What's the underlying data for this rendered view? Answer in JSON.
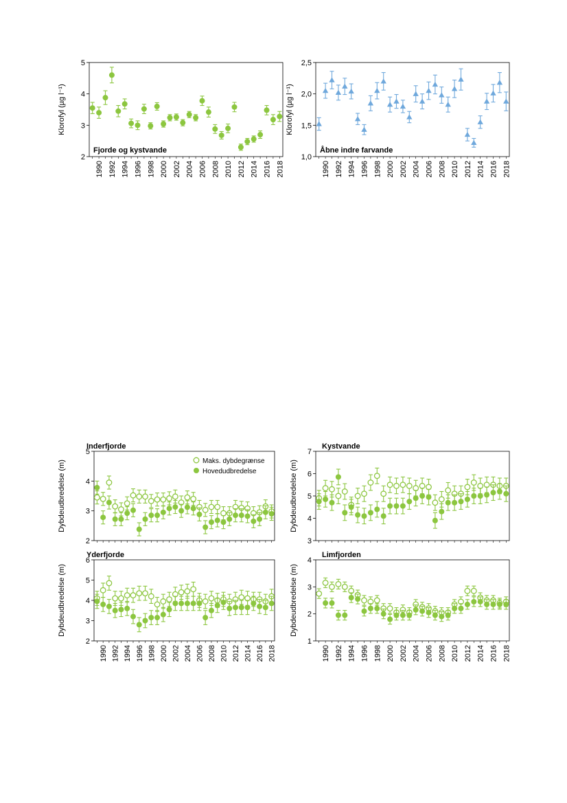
{
  "colors": {
    "green": "#8cc63f",
    "blue": "#6fa8dc"
  },
  "chart_data": [
    {
      "type": "scatter",
      "title": "Fjorde og kystvande",
      "ylabel": "Klorofyl (µg l⁻¹)",
      "ylim": [
        2,
        5
      ],
      "yticks": [
        2,
        3,
        4,
        5
      ],
      "ytick_labels": [
        "2",
        "3",
        "4",
        "5"
      ],
      "xlim": [
        1988.5,
        2018.5
      ],
      "xticks": [
        1990,
        1992,
        1994,
        1996,
        1998,
        2000,
        2002,
        2004,
        2006,
        2008,
        2010,
        2012,
        2014,
        2016,
        2018
      ],
      "grid": false,
      "series": [
        {
          "marker": "filled-circle",
          "color": "#8cc63f",
          "x": [
            1989,
            1990,
            1991,
            1992,
            1993,
            1994,
            1995,
            1996,
            1997,
            1998,
            1999,
            2000,
            2001,
            2002,
            2003,
            2004,
            2005,
            2006,
            2007,
            2008,
            2009,
            2010,
            2011,
            2012,
            2013,
            2014,
            2015,
            2016,
            2017,
            2018
          ],
          "y": [
            3.55,
            3.4,
            3.88,
            4.6,
            3.45,
            3.68,
            3.06,
            3.0,
            3.52,
            2.98,
            3.6,
            3.04,
            3.24,
            3.26,
            3.08,
            3.34,
            3.24,
            3.78,
            3.42,
            2.88,
            2.68,
            2.9,
            3.58,
            2.3,
            2.48,
            2.56,
            2.7,
            3.48,
            3.18,
            3.28
          ],
          "err": [
            0.18,
            0.18,
            0.22,
            0.25,
            0.18,
            0.16,
            0.14,
            0.14,
            0.15,
            0.1,
            0.12,
            0.1,
            0.1,
            0.1,
            0.1,
            0.1,
            0.1,
            0.15,
            0.16,
            0.14,
            0.12,
            0.14,
            0.15,
            0.1,
            0.1,
            0.1,
            0.12,
            0.15,
            0.16,
            0.16
          ]
        }
      ]
    },
    {
      "type": "scatter",
      "title": "Åbne indre farvande",
      "ylabel": "Klorofyl (µg l⁻¹)",
      "ylim": [
        1.0,
        2.5
      ],
      "yticks": [
        1.0,
        1.5,
        2.0,
        2.5
      ],
      "ytick_labels": [
        "1,0",
        "1,5",
        "2,0",
        "2,5"
      ],
      "xlim": [
        1988.5,
        2018.5
      ],
      "xticks": [
        1990,
        1992,
        1994,
        1996,
        1998,
        2000,
        2002,
        2004,
        2006,
        2008,
        2010,
        2012,
        2014,
        2016,
        2018
      ],
      "grid": false,
      "series": [
        {
          "marker": "filled-triangle",
          "color": "#6fa8dc",
          "x": [
            1989,
            1990,
            1991,
            1992,
            1993,
            1994,
            1995,
            1996,
            1997,
            1998,
            1999,
            2000,
            2001,
            2002,
            2003,
            2004,
            2005,
            2006,
            2007,
            2008,
            2009,
            2010,
            2011,
            2012,
            2013,
            2014,
            2015,
            2016,
            2017,
            2018
          ],
          "y": [
            1.52,
            2.05,
            2.22,
            2.02,
            2.12,
            2.04,
            1.6,
            1.43,
            1.85,
            2.05,
            2.2,
            1.83,
            1.88,
            1.8,
            1.63,
            2.0,
            1.88,
            2.05,
            2.15,
            1.98,
            1.83,
            2.08,
            2.23,
            1.35,
            1.22,
            1.55,
            1.88,
            2.01,
            2.18,
            1.88
          ]
        }
      ],
      "err": [
        0.1,
        0.12,
        0.14,
        0.12,
        0.13,
        0.12,
        0.09,
        0.08,
        0.12,
        0.13,
        0.14,
        0.12,
        0.11,
        0.1,
        0.09,
        0.13,
        0.12,
        0.14,
        0.15,
        0.13,
        0.12,
        0.14,
        0.17,
        0.1,
        0.07,
        0.1,
        0.13,
        0.14,
        0.16,
        0.15
      ]
    },
    {
      "type": "scatter",
      "title": "Inderfjorde",
      "ylabel": "Dybdeudbredelse (m)",
      "ylim": [
        2,
        5
      ],
      "yticks": [
        2,
        3,
        4,
        5
      ],
      "ytick_labels": [
        "2",
        "3",
        "4",
        "5"
      ],
      "xlim": [
        1988.5,
        2018.5
      ],
      "xticks": [],
      "grid": false,
      "legend": "top-right",
      "series": [
        {
          "name": "Maks. dybdegrænse",
          "marker": "open-circle",
          "color": "#8cc63f",
          "x": [
            1989,
            1990,
            1991,
            1992,
            1993,
            1994,
            1995,
            1996,
            1997,
            1998,
            1999,
            2000,
            2001,
            2002,
            2003,
            2004,
            2005,
            2006,
            2007,
            2008,
            2009,
            2010,
            2011,
            2012,
            2013,
            2014,
            2015,
            2016,
            2017,
            2018
          ],
          "y": [
            3.45,
            3.4,
            3.95,
            3.15,
            3.05,
            3.25,
            3.52,
            3.48,
            3.48,
            3.33,
            3.38,
            3.38,
            3.42,
            3.48,
            3.28,
            3.45,
            3.4,
            3.13,
            3.03,
            3.13,
            3.13,
            2.92,
            2.92,
            3.13,
            3.1,
            3.08,
            2.92,
            2.95,
            3.15,
            2.98
          ]
        },
        {
          "name": "Hovedudbredelse",
          "marker": "filled-circle",
          "color": "#8cc63f",
          "x": [
            1989,
            1990,
            1991,
            1992,
            1993,
            1994,
            1995,
            1996,
            1997,
            1998,
            1999,
            2000,
            2001,
            2002,
            2003,
            2004,
            2005,
            2006,
            2007,
            2008,
            2009,
            2010,
            2011,
            2012,
            2013,
            2014,
            2015,
            2016,
            2017,
            2018
          ],
          "y": [
            3.78,
            2.78,
            3.28,
            2.72,
            2.72,
            2.92,
            3.02,
            2.38,
            2.72,
            2.85,
            2.85,
            2.95,
            3.08,
            3.13,
            3.0,
            3.12,
            3.08,
            2.88,
            2.45,
            2.62,
            2.68,
            2.62,
            2.72,
            2.85,
            2.85,
            2.82,
            2.65,
            2.72,
            2.95,
            2.9
          ]
        }
      ]
    },
    {
      "type": "scatter",
      "title": "Kystvande",
      "ylabel": "Dybdeudbredelse (m)",
      "ylim": [
        3,
        7
      ],
      "yticks": [
        3,
        4,
        5,
        6,
        7
      ],
      "ytick_labels": [
        "3",
        "4",
        "5",
        "6",
        "7"
      ],
      "xlim": [
        1988.5,
        2018.5
      ],
      "xticks": [],
      "grid": false,
      "series": [
        {
          "marker": "open-circle",
          "color": "#8cc63f",
          "x": [
            1989,
            1990,
            1991,
            1992,
            1993,
            1994,
            1995,
            1996,
            1997,
            1998,
            1999,
            2000,
            2001,
            2002,
            2003,
            2004,
            2005,
            2006,
            2007,
            2008,
            2009,
            2010,
            2011,
            2012,
            2013,
            2014,
            2015,
            2016,
            2017,
            2018
          ],
          "y": [
            4.9,
            5.35,
            5.3,
            5.0,
            5.2,
            4.6,
            5.0,
            5.1,
            5.6,
            5.9,
            5.1,
            5.5,
            5.45,
            5.5,
            5.45,
            5.35,
            5.45,
            5.4,
            4.7,
            4.85,
            5.25,
            5.1,
            5.1,
            5.4,
            5.6,
            5.45,
            5.5,
            5.5,
            5.45,
            5.45
          ]
        },
        {
          "marker": "filled-circle",
          "color": "#8cc63f",
          "x": [
            1989,
            1990,
            1991,
            1992,
            1993,
            1994,
            1995,
            1996,
            1997,
            1998,
            1999,
            2000,
            2001,
            2002,
            2003,
            2004,
            2005,
            2006,
            2007,
            2008,
            2009,
            2010,
            2011,
            2012,
            2013,
            2014,
            2015,
            2016,
            2017,
            2018
          ],
          "y": [
            4.75,
            4.85,
            4.7,
            5.85,
            4.25,
            4.5,
            4.15,
            4.1,
            4.25,
            4.4,
            4.1,
            4.55,
            4.55,
            4.55,
            4.75,
            4.9,
            5.0,
            4.95,
            3.9,
            4.3,
            4.7,
            4.7,
            4.75,
            4.85,
            5.0,
            5.0,
            5.05,
            5.15,
            5.2,
            5.1
          ]
        }
      ]
    },
    {
      "type": "scatter",
      "title": "Yderfjorde",
      "ylabel": "Dybdeudbredelse (m)",
      "ylim": [
        2,
        6
      ],
      "yticks": [
        2,
        3,
        4,
        5,
        6
      ],
      "ytick_labels": [
        "2",
        "3",
        "4",
        "5",
        "6"
      ],
      "xlim": [
        1988.5,
        2018.5
      ],
      "xticks": [
        1990,
        1992,
        1994,
        1996,
        1998,
        2000,
        2002,
        2004,
        2006,
        2008,
        2010,
        2012,
        2014,
        2016,
        2018
      ],
      "grid": false,
      "series": [
        {
          "marker": "open-circle",
          "color": "#8cc63f",
          "x": [
            1989,
            1990,
            1991,
            1992,
            1993,
            1994,
            1995,
            1996,
            1997,
            1998,
            1999,
            2000,
            2001,
            2002,
            2003,
            2004,
            2005,
            2006,
            2007,
            2008,
            2009,
            2010,
            2011,
            2012,
            2013,
            2014,
            2015,
            2016,
            2017,
            2018
          ],
          "y": [
            4.1,
            4.5,
            4.85,
            4.1,
            4.1,
            4.25,
            4.25,
            4.35,
            4.35,
            4.2,
            3.8,
            3.95,
            4.05,
            4.3,
            4.4,
            4.45,
            4.55,
            4.0,
            3.95,
            4.1,
            4.0,
            4.05,
            3.95,
            4.05,
            4.15,
            4.1,
            4.05,
            4.05,
            3.95,
            4.2
          ]
        },
        {
          "marker": "filled-circle",
          "color": "#8cc63f",
          "x": [
            1989,
            1990,
            1991,
            1992,
            1993,
            1994,
            1995,
            1996,
            1997,
            1998,
            1999,
            2000,
            2001,
            2002,
            2003,
            2004,
            2005,
            2006,
            2007,
            2008,
            2009,
            2010,
            2011,
            2012,
            2013,
            2014,
            2015,
            2016,
            2017,
            2018
          ],
          "y": [
            3.95,
            3.8,
            3.7,
            3.5,
            3.55,
            3.6,
            3.2,
            2.8,
            3.0,
            3.15,
            3.15,
            3.3,
            3.55,
            3.85,
            3.85,
            3.85,
            3.85,
            3.85,
            3.15,
            3.5,
            3.75,
            3.9,
            3.6,
            3.65,
            3.65,
            3.65,
            3.85,
            3.7,
            3.65,
            3.85
          ]
        }
      ]
    },
    {
      "type": "scatter",
      "title": "Limfjorden",
      "ylabel": "Dybdeudbredelse (m)",
      "ylim": [
        1,
        4
      ],
      "yticks": [
        1,
        2,
        3,
        4
      ],
      "ytick_labels": [
        "1",
        "2",
        "3",
        "4"
      ],
      "xlim": [
        1988.5,
        2018.5
      ],
      "xticks": [
        1990,
        1992,
        1994,
        1996,
        1998,
        2000,
        2002,
        2004,
        2006,
        2008,
        2010,
        2012,
        2014,
        2016,
        2018
      ],
      "grid": false,
      "series": [
        {
          "marker": "open-circle",
          "color": "#8cc63f",
          "x": [
            1989,
            1990,
            1991,
            1992,
            1993,
            1994,
            1995,
            1996,
            1997,
            1998,
            1999,
            2000,
            2001,
            2002,
            2003,
            2004,
            2005,
            2006,
            2007,
            2008,
            2009,
            2010,
            2011,
            2012,
            2013,
            2014,
            2015,
            2016,
            2017,
            2018
          ],
          "y": [
            2.75,
            3.15,
            3.0,
            3.1,
            3.0,
            2.85,
            2.7,
            2.5,
            2.45,
            2.5,
            2.2,
            2.2,
            2.05,
            2.15,
            2.05,
            2.35,
            2.25,
            2.2,
            2.1,
            2.05,
            2.05,
            2.35,
            2.45,
            2.85,
            2.85,
            2.6,
            2.5,
            2.5,
            2.4,
            2.45
          ]
        },
        {
          "marker": "filled-circle",
          "color": "#8cc63f",
          "x": [
            1989,
            1990,
            1991,
            1992,
            1993,
            1994,
            1995,
            1996,
            1997,
            1998,
            1999,
            2000,
            2001,
            2002,
            2003,
            2004,
            2005,
            2006,
            2007,
            2008,
            2009,
            2010,
            2011,
            2012,
            2013,
            2014,
            2015,
            2016,
            2017,
            2018
          ],
          "y": [
            null,
            2.4,
            2.4,
            1.95,
            1.95,
            2.6,
            2.55,
            2.1,
            2.2,
            2.2,
            2.0,
            1.8,
            1.95,
            1.95,
            1.95,
            2.15,
            2.1,
            2.05,
            1.95,
            1.9,
            1.95,
            2.2,
            2.2,
            2.35,
            2.45,
            2.45,
            2.35,
            2.35,
            2.35,
            2.35
          ]
        }
      ]
    }
  ]
}
